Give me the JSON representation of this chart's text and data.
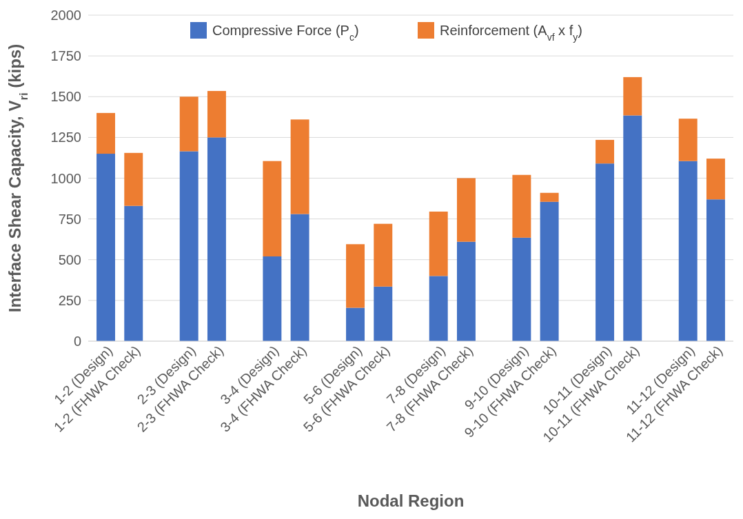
{
  "chart_data": {
    "type": "bar",
    "stacked": true,
    "xlabel": "Nodal Region",
    "ylabel": "Interface Shear Capacity, V$_{ri}$ (kips)",
    "categories": [
      "1-2 (Design)",
      "1-2 (FHWA Check)",
      null,
      "2-3 (Design)",
      "2-3 (FHWA Check)",
      null,
      "3-4 (Design)",
      "3-4 (FHWA Check)",
      null,
      "5-6 (Design)",
      "5-6 (FHWA Check)",
      null,
      "7-8 (Design)",
      "7-8 (FHWA Check)",
      null,
      "9-10 (Design)",
      "9-10 (FHWA Check)",
      null,
      "10-11 (Design)",
      "10-11 (FHWA Check)",
      null,
      "11-12 (Design)",
      "11-12 (FHWA Check)"
    ],
    "series": [
      {
        "name": "Compressive Force (P$_{c}$)",
        "color": "#4472c4",
        "values": [
          1150,
          830,
          null,
          1165,
          1250,
          null,
          520,
          780,
          null,
          205,
          335,
          null,
          400,
          610,
          null,
          635,
          855,
          null,
          1090,
          1385,
          null,
          1105,
          870
        ]
      },
      {
        "name": "Reinforcement (A$_{vf}$ x f$_{y}$)",
        "color": "#ed7d31",
        "values": [
          250,
          325,
          null,
          335,
          285,
          null,
          585,
          580,
          null,
          390,
          385,
          null,
          395,
          390,
          null,
          385,
          55,
          null,
          145,
          235,
          null,
          260,
          250
        ]
      }
    ],
    "ylim": [
      0,
      2000
    ],
    "yticks": [
      0,
      250,
      500,
      750,
      1000,
      1250,
      1500,
      1750,
      2000
    ],
    "grid": "y",
    "legend": "top"
  }
}
